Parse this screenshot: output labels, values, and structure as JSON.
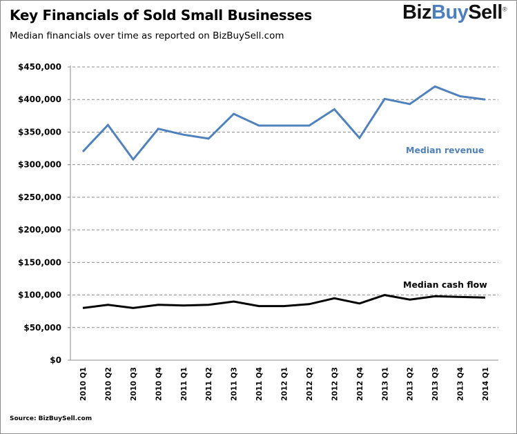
{
  "header": {
    "title": "Key Financials of Sold Small Businesses",
    "subtitle": "Median financials over time as reported  on  BizBuySell.com"
  },
  "logo": {
    "part1": "Biz",
    "part2": "Buy",
    "part3": "Sell",
    "registered": "®",
    "accent_color": "#4e7fbd"
  },
  "footer": {
    "source": "Source: BizBuySell.com"
  },
  "chart_data": {
    "type": "line",
    "title": "Key Financials of Sold Small Businesses",
    "subtitle": "Median financials over time as reported on BizBuySell.com",
    "xlabel": "",
    "ylabel": "",
    "ylim": [
      0,
      450000
    ],
    "yticks": [
      0,
      50000,
      100000,
      150000,
      200000,
      250000,
      300000,
      350000,
      400000,
      450000
    ],
    "ytick_labels": [
      "$0",
      "$50,000",
      "$100,000",
      "$150,000",
      "$200,000",
      "$250,000",
      "$300,000",
      "$350,000",
      "$400,000",
      "$450,000"
    ],
    "grid": "horizontal-dashed",
    "categories": [
      "2010 Q1",
      "2010 Q2",
      "2010 Q3",
      "2010 Q4",
      "2011 Q1",
      "2011 Q2",
      "2011 Q3",
      "2011 Q4",
      "2012 Q1",
      "2012 Q2",
      "2012 Q3",
      "2012 Q4",
      "2013 Q1",
      "2013 Q2",
      "2013 Q3",
      "2013 Q4",
      "2014 Q1"
    ],
    "series": [
      {
        "name": "Median revenue",
        "color": "#4f81bd",
        "values": [
          320000,
          361000,
          308000,
          355000,
          346000,
          340000,
          378000,
          360000,
          360000,
          360000,
          385000,
          341000,
          401000,
          393000,
          420000,
          405000,
          400000
        ]
      },
      {
        "name": "Median cash flow",
        "color": "#000000",
        "values": [
          80000,
          85000,
          80000,
          85000,
          84000,
          85000,
          90000,
          83000,
          83000,
          86000,
          95000,
          87000,
          100000,
          93000,
          98000,
          97000,
          96000
        ]
      }
    ],
    "annotations": [
      "Median revenue",
      "Median cash flow"
    ],
    "legend": "inline-labels"
  }
}
